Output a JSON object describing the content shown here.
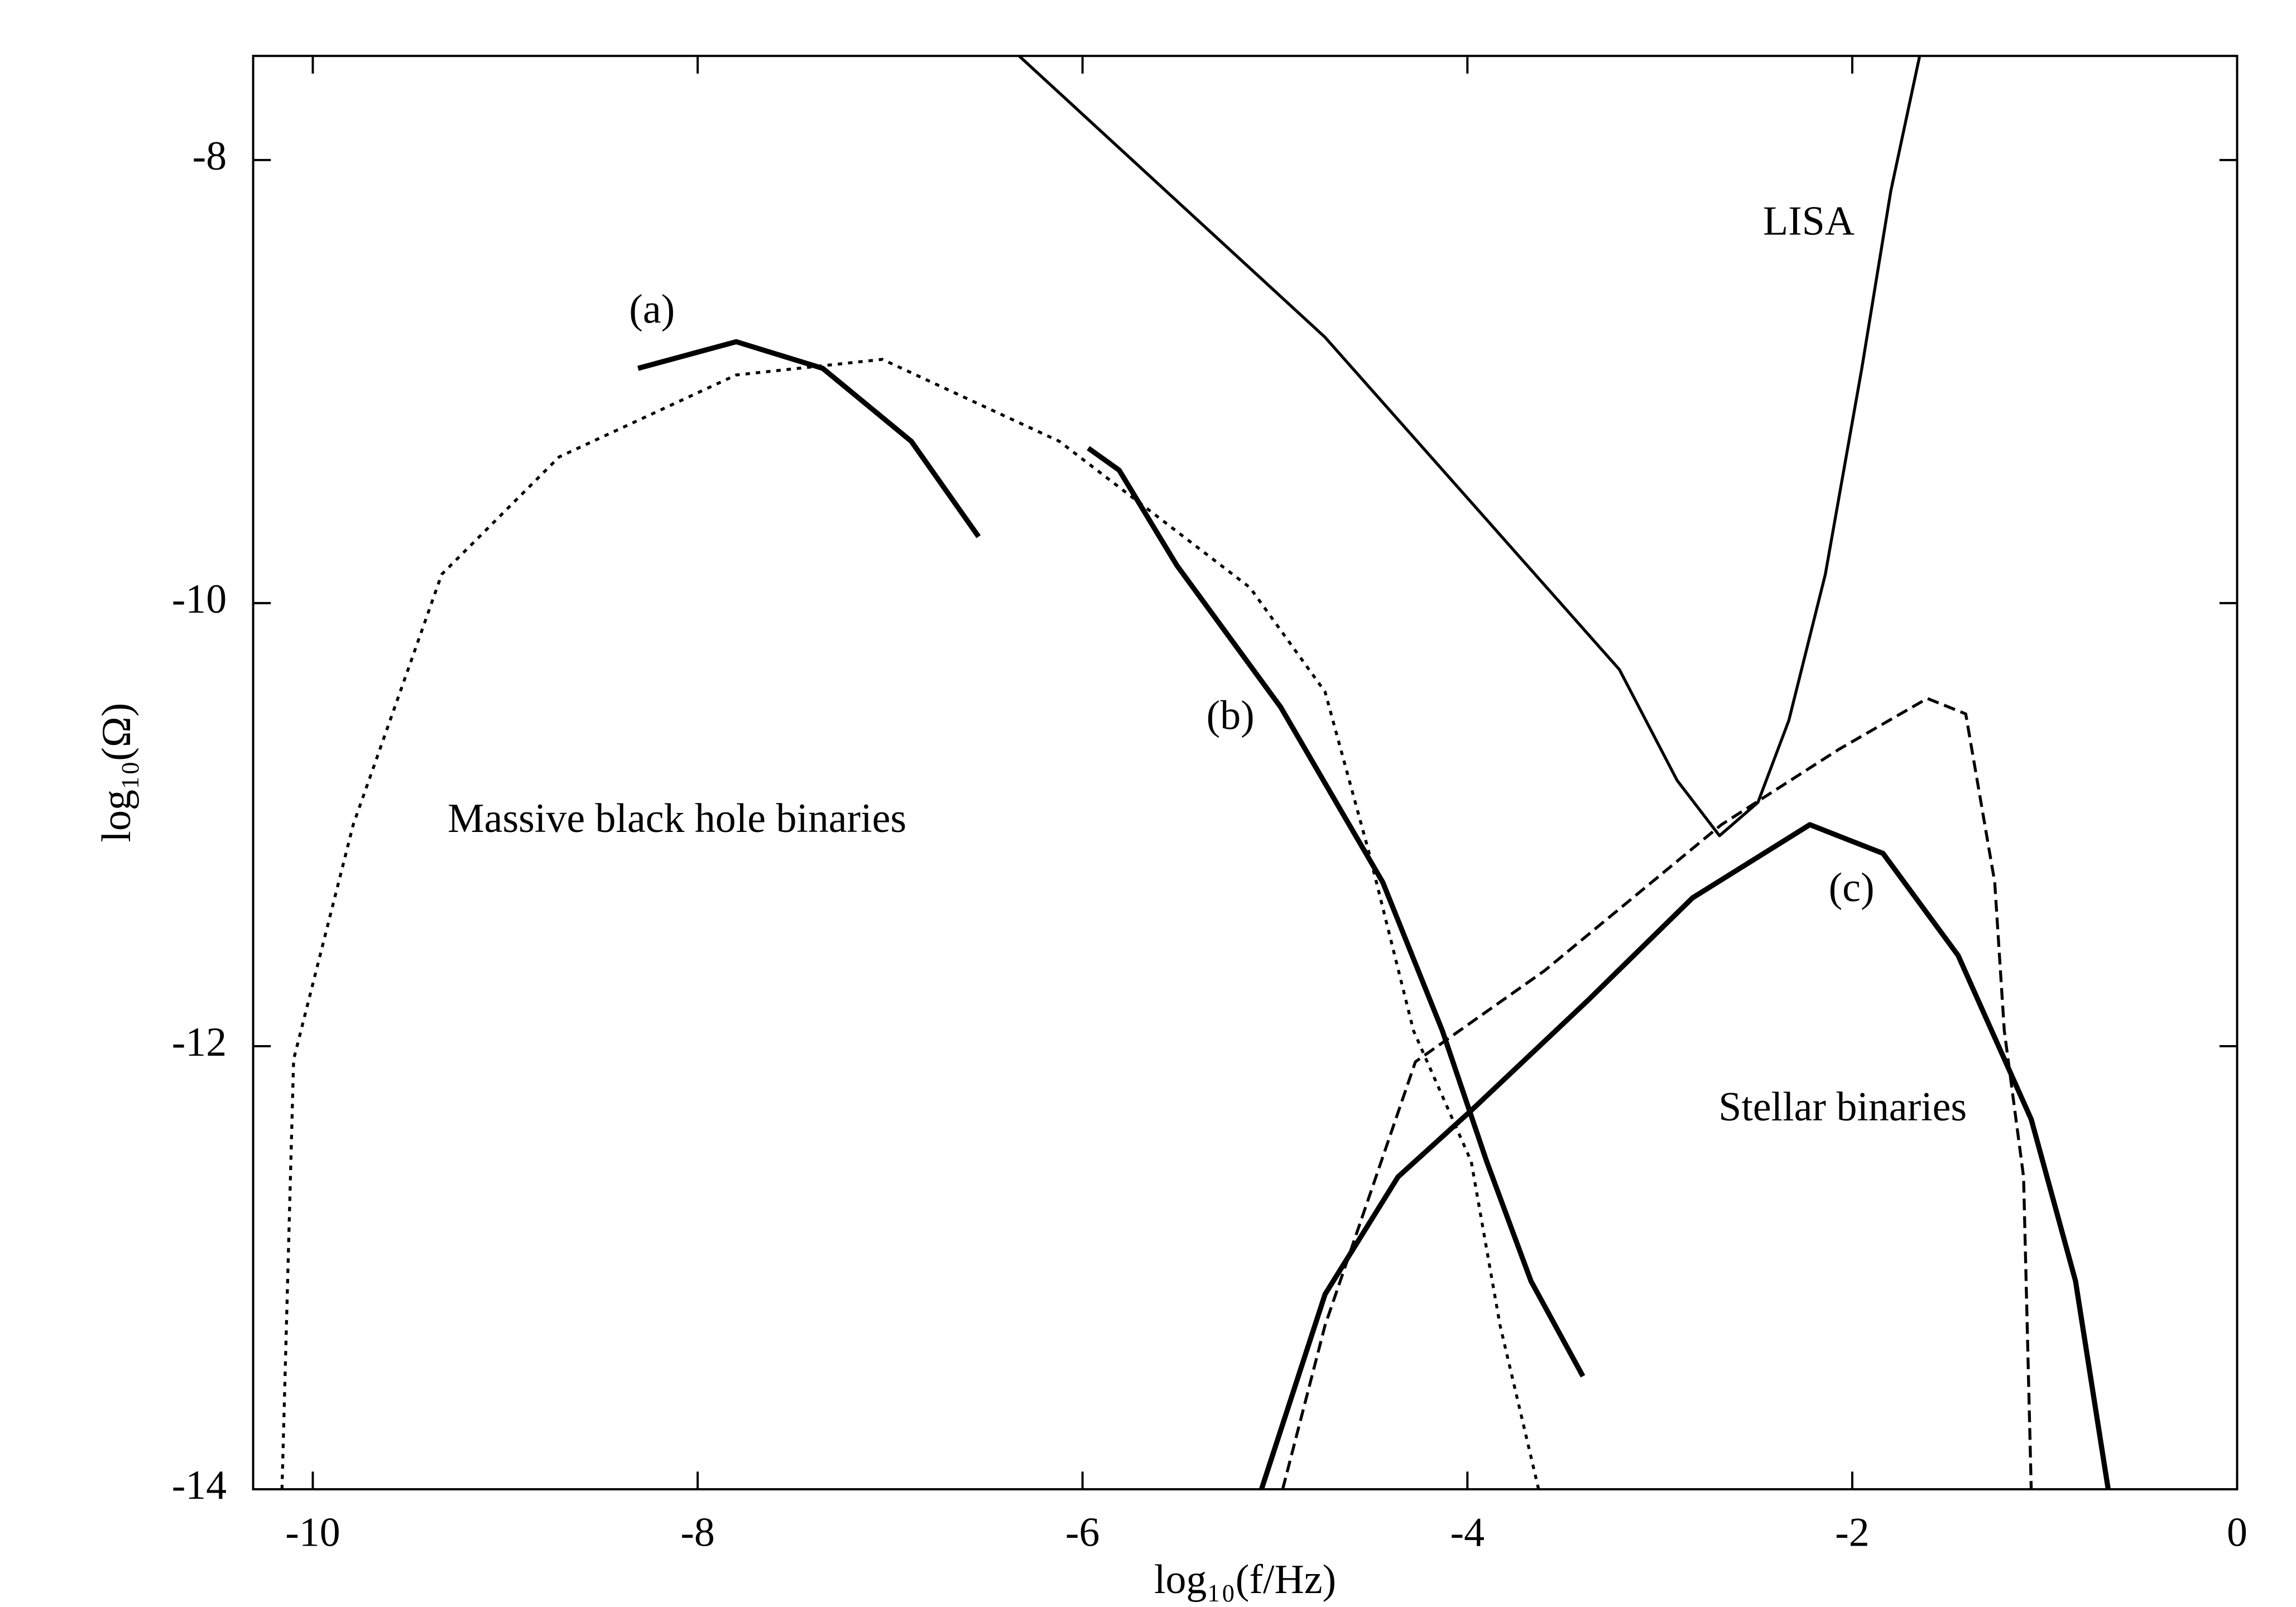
{
  "chart_data": {
    "type": "line",
    "xlabel": "log₁₀(f/Hz)",
    "ylabel": "log₁₀(Ω)",
    "xlim": [
      -10.31,
      0
    ],
    "ylim": [
      -14,
      -7.53
    ],
    "xticks": [
      -10,
      -8,
      -6,
      -4,
      -2,
      0
    ],
    "yticks": [
      -14,
      -12,
      -10,
      -8
    ],
    "grid": false,
    "annotations": [
      "LISA",
      "(a)",
      "(b)",
      "(c)",
      "Massive black hole binaries",
      "Stellar binaries"
    ],
    "series": [
      {
        "color": "#000000",
        "style": "solid",
        "width": 2,
        "x": [
          -6.33,
          -4.74,
          -3.21,
          -2.91,
          -2.69,
          -2.49,
          -2.33,
          -2.14,
          -1.95,
          -1.8,
          -1.65
        ],
        "values": [
          -7.53,
          -8.8,
          -10.3,
          -10.8,
          -11.05,
          -10.9,
          -10.53,
          -9.87,
          -8.94,
          -8.14,
          -7.53
        ]
      },
      {
        "color": "#000000",
        "style": "dotted",
        "width": 2,
        "x": [
          -10.16,
          -10.1,
          -9.79,
          -9.33,
          -8.72,
          -7.8,
          -7.04,
          -6.12,
          -5.13,
          -4.74,
          -4.51,
          -4.28,
          -3.98,
          -3.83,
          -3.63
        ],
        "values": [
          -14,
          -12.06,
          -11.0,
          -9.87,
          -9.34,
          -8.97,
          -8.9,
          -9.27,
          -9.93,
          -10.4,
          -11.13,
          -11.93,
          -12.52,
          -13.26,
          -14
        ]
      },
      {
        "color": "#000000",
        "style": "solid",
        "width": 3.5,
        "x": [
          -8.31,
          -7.8,
          -7.35,
          -6.89,
          -6.54
        ],
        "values": [
          -8.94,
          -8.82,
          -8.94,
          -9.27,
          -9.7
        ]
      },
      {
        "color": "#000000",
        "style": "solid",
        "width": 3.5,
        "x": [
          -5.97,
          -5.81,
          -5.51,
          -4.97,
          -4.44,
          -4.13,
          -3.9,
          -3.67,
          -3.4
        ],
        "values": [
          -9.3,
          -9.4,
          -9.83,
          -10.47,
          -11.26,
          -11.93,
          -12.52,
          -13.06,
          -13.49
        ]
      },
      {
        "color": "#000000",
        "style": "solid",
        "width": 3.5,
        "x": [
          -5.07,
          -4.74,
          -4.36,
          -3.98,
          -3.37,
          -2.83,
          -2.22,
          -1.84,
          -1.45,
          -1.07,
          -0.84,
          -0.67
        ],
        "values": [
          -14,
          -13.12,
          -12.59,
          -12.29,
          -11.79,
          -11.33,
          -11.0,
          -11.13,
          -11.59,
          -12.33,
          -13.06,
          -14
        ]
      },
      {
        "color": "#000000",
        "style": "dashed",
        "width": 2,
        "x": [
          -4.96,
          -4.74,
          -4.27,
          -3.6,
          -2.68,
          -2.07,
          -1.61,
          -1.41,
          -1.26,
          -1.21,
          -1.11,
          -1.07
        ],
        "values": [
          -14,
          -13.26,
          -12.07,
          -11.66,
          -11.0,
          -10.66,
          -10.43,
          -10.5,
          -11.26,
          -11.93,
          -12.59,
          -14
        ]
      }
    ]
  }
}
